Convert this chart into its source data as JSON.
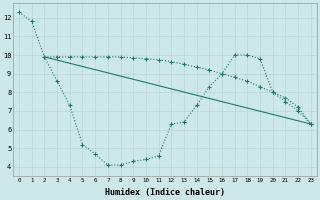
{
  "line1_x": [
    0,
    1,
    2,
    3,
    4,
    5,
    6,
    7,
    8,
    9,
    10,
    11,
    12,
    13,
    14,
    15,
    16,
    17,
    18,
    19,
    20,
    21,
    22,
    23
  ],
  "line1_y": [
    12.3,
    11.8,
    9.9,
    8.6,
    7.3,
    5.2,
    4.7,
    4.1,
    4.1,
    4.3,
    4.4,
    4.6,
    6.3,
    6.4,
    7.3,
    8.3,
    9.0,
    10.0,
    10.0,
    9.8,
    8.0,
    7.5,
    7.0,
    6.3
  ],
  "line2_x": [
    2,
    3,
    4,
    5,
    6,
    7,
    8,
    9,
    10,
    11,
    12,
    13,
    14,
    15,
    16,
    17,
    18,
    19,
    20,
    21,
    22,
    23
  ],
  "line2_y": [
    9.9,
    9.9,
    9.9,
    9.9,
    9.9,
    9.9,
    9.9,
    9.85,
    9.8,
    9.75,
    9.65,
    9.5,
    9.35,
    9.2,
    9.0,
    8.8,
    8.6,
    8.3,
    8.0,
    7.7,
    7.2,
    6.3
  ],
  "line3_x": [
    2,
    23
  ],
  "line3_y": [
    9.9,
    6.3
  ],
  "color": "#1c7a6e",
  "bg_color": "#cde8e8",
  "grid_color": "#b8d4d4",
  "xlabel": "Humidex (Indice chaleur)",
  "xlim": [
    -0.5,
    23.5
  ],
  "ylim": [
    3.5,
    12.8
  ],
  "yticks": [
    4,
    5,
    6,
    7,
    8,
    9,
    10,
    11,
    12
  ],
  "xticks": [
    0,
    1,
    2,
    3,
    4,
    5,
    6,
    7,
    8,
    9,
    10,
    11,
    12,
    13,
    14,
    15,
    16,
    17,
    18,
    19,
    20,
    21,
    22,
    23
  ]
}
